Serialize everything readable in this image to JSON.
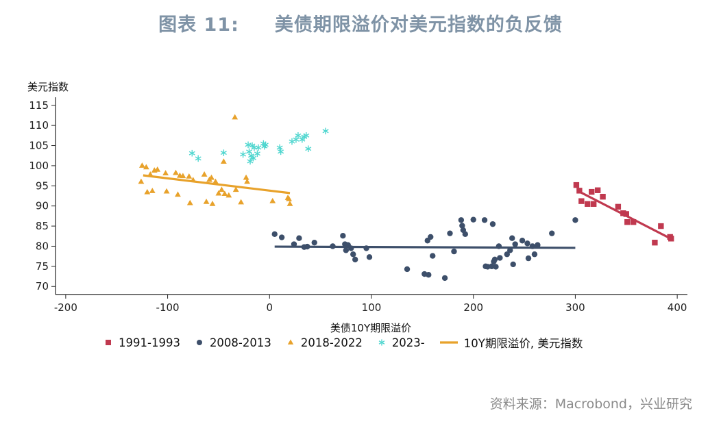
{
  "figure": {
    "label": "图表 11:",
    "title": "美债期限溢价对美元指数的负反馈",
    "source": "资料来源：Macrobond，兴业研究"
  },
  "chart_data": {
    "type": "scatter",
    "title": "美债期限溢价对美元指数的负反馈",
    "xlabel": "美债10Y期限溢价",
    "ylabel": "美元指数",
    "xlim": [
      -210,
      410
    ],
    "ylim": [
      68,
      117
    ],
    "x_ticks": [
      -200,
      -100,
      0,
      100,
      200,
      300,
      400
    ],
    "y_ticks": [
      70,
      75,
      80,
      85,
      90,
      95,
      100,
      105,
      110,
      115
    ],
    "legend_position": "bottom",
    "series": [
      {
        "name": "1991-1993",
        "marker": "square",
        "color": "#c0394f",
        "points": [
          [
            301,
            95.2
          ],
          [
            304,
            93.8
          ],
          [
            306,
            91.2
          ],
          [
            312,
            90.5
          ],
          [
            316,
            93.5
          ],
          [
            318,
            90.5
          ],
          [
            322,
            93.9
          ],
          [
            327,
            92.3
          ],
          [
            342,
            89.8
          ],
          [
            347,
            88.2
          ],
          [
            350,
            88.0
          ],
          [
            351,
            86.0
          ],
          [
            357,
            86.0
          ],
          [
            378,
            80.9
          ],
          [
            384,
            85.0
          ],
          [
            393,
            82.3
          ],
          [
            394,
            81.9
          ]
        ],
        "fit": [
          [
            302,
            93.8
          ],
          [
            395,
            81.7
          ]
        ]
      },
      {
        "name": "2008-2013",
        "marker": "circle",
        "color": "#3d4f6a",
        "points": [
          [
            5,
            83.0
          ],
          [
            12,
            82.2
          ],
          [
            24,
            80.5
          ],
          [
            29,
            82.0
          ],
          [
            34,
            79.8
          ],
          [
            37,
            79.9
          ],
          [
            44,
            80.9
          ],
          [
            62,
            80.0
          ],
          [
            72,
            82.6
          ],
          [
            74,
            80.5
          ],
          [
            75,
            79.0
          ],
          [
            77,
            80.3
          ],
          [
            80,
            79.5
          ],
          [
            82,
            78.0
          ],
          [
            84,
            76.7
          ],
          [
            95,
            79.5
          ],
          [
            98,
            77.3
          ],
          [
            135,
            74.3
          ],
          [
            152,
            73.1
          ],
          [
            155,
            81.4
          ],
          [
            156,
            72.9
          ],
          [
            158,
            82.3
          ],
          [
            160,
            77.6
          ],
          [
            172,
            72.1
          ],
          [
            177,
            83.2
          ],
          [
            181,
            78.7
          ],
          [
            188,
            86.5
          ],
          [
            189,
            85.1
          ],
          [
            190,
            84.0
          ],
          [
            192,
            83.0
          ],
          [
            200,
            86.6
          ],
          [
            211,
            86.5
          ],
          [
            212,
            75.0
          ],
          [
            214,
            74.9
          ],
          [
            218,
            75.0
          ],
          [
            219,
            85.5
          ],
          [
            220,
            76.2
          ],
          [
            221,
            76.7
          ],
          [
            222,
            74.9
          ],
          [
            225,
            80.0
          ],
          [
            226,
            77.1
          ],
          [
            233,
            78.0
          ],
          [
            236,
            79.0
          ],
          [
            238,
            82.0
          ],
          [
            239,
            75.5
          ],
          [
            241,
            80.5
          ],
          [
            248,
            81.4
          ],
          [
            253,
            80.7
          ],
          [
            254,
            77.0
          ],
          [
            258,
            80.0
          ],
          [
            260,
            78.0
          ],
          [
            263,
            80.3
          ],
          [
            277,
            83.2
          ],
          [
            300,
            86.5
          ]
        ],
        "fit": [
          [
            5,
            79.9
          ],
          [
            300,
            79.6
          ]
        ]
      },
      {
        "name": "2018-2022",
        "marker": "triangle",
        "color": "#e8a22b",
        "points": [
          [
            -126,
            96.0
          ],
          [
            -125,
            100.0
          ],
          [
            -121,
            99.6
          ],
          [
            -120,
            93.4
          ],
          [
            -117,
            97.8
          ],
          [
            -115,
            93.7
          ],
          [
            -113,
            98.8
          ],
          [
            -110,
            99.0
          ],
          [
            -102,
            98.1
          ],
          [
            -101,
            93.6
          ],
          [
            -92,
            98.2
          ],
          [
            -90,
            92.8
          ],
          [
            -88,
            97.5
          ],
          [
            -85,
            97.4
          ],
          [
            -79,
            97.3
          ],
          [
            -78,
            90.7
          ],
          [
            -75,
            96.4
          ],
          [
            -64,
            97.8
          ],
          [
            -62,
            91.0
          ],
          [
            -59,
            96.5
          ],
          [
            -57,
            97.0
          ],
          [
            -56,
            90.5
          ],
          [
            -53,
            96.0
          ],
          [
            -50,
            93.1
          ],
          [
            -47,
            94.0
          ],
          [
            -45,
            101.0
          ],
          [
            -44,
            93.0
          ],
          [
            -40,
            92.6
          ],
          [
            -34,
            112.0
          ],
          [
            -33,
            94.0
          ],
          [
            -28,
            90.9
          ],
          [
            -23,
            97.0
          ],
          [
            -22,
            96.0
          ],
          [
            3,
            91.2
          ],
          [
            18,
            92.0
          ],
          [
            19,
            91.7
          ],
          [
            20,
            90.5
          ]
        ],
        "fit": [
          [
            -124,
            97.6
          ],
          [
            20,
            93.2
          ]
        ]
      },
      {
        "name": "2023-",
        "marker": "asterisk",
        "color": "#4fd6cf",
        "points": [
          [
            -76,
            103.1
          ],
          [
            -70,
            101.8
          ],
          [
            -45,
            103.2
          ],
          [
            -26,
            102.8
          ],
          [
            -21,
            105.2
          ],
          [
            -20,
            103.5
          ],
          [
            -19,
            101.1
          ],
          [
            -18,
            102.5
          ],
          [
            -17,
            105.0
          ],
          [
            -16,
            101.9
          ],
          [
            -15,
            104.5
          ],
          [
            -12,
            103.0
          ],
          [
            -11,
            104.5
          ],
          [
            -6,
            105.5
          ],
          [
            -5,
            104.8
          ],
          [
            -4,
            105.2
          ],
          [
            10,
            104.5
          ],
          [
            11,
            103.5
          ],
          [
            22,
            106.0
          ],
          [
            26,
            106.5
          ],
          [
            28,
            107.5
          ],
          [
            32,
            106.5
          ],
          [
            34,
            107.2
          ],
          [
            36,
            107.5
          ],
          [
            38,
            104.2
          ],
          [
            55,
            108.6
          ]
        ]
      }
    ],
    "fit_legend": "10Y期限溢价, 美元指数"
  }
}
